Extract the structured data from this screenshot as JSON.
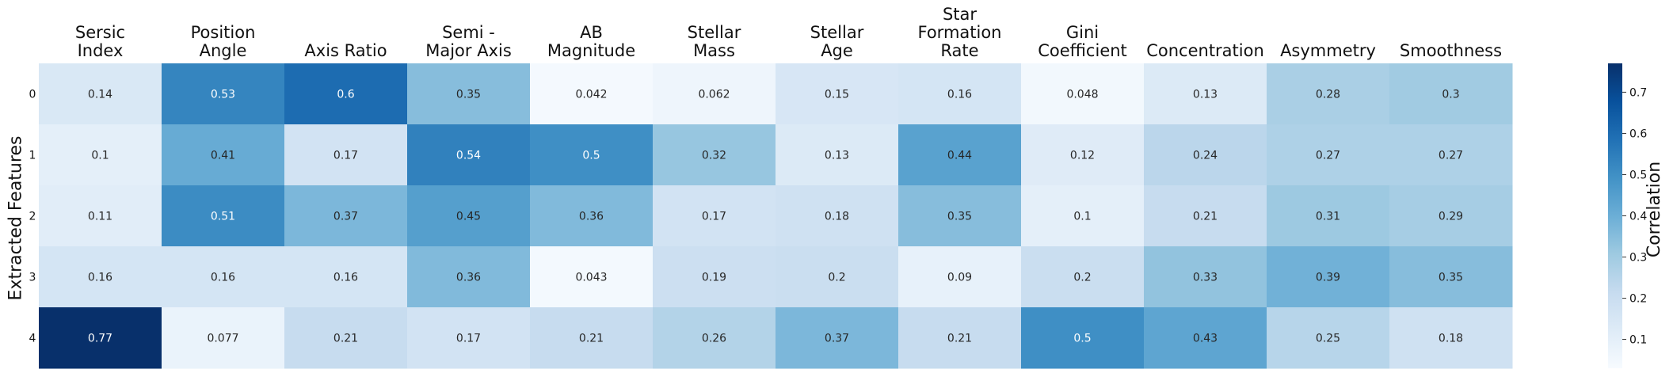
{
  "chart_data": {
    "type": "heatmap",
    "columns": [
      [
        "Sersic",
        "Index"
      ],
      [
        "Position",
        "Angle"
      ],
      [
        "Axis Ratio"
      ],
      [
        "Semi -",
        "Major Axis"
      ],
      [
        "AB",
        "Magnitude"
      ],
      [
        "Stellar",
        "Mass"
      ],
      [
        "Stellar",
        "Age"
      ],
      [
        "Star",
        "Formation",
        "Rate"
      ],
      [
        "Gini",
        "Coefficient"
      ],
      [
        "Concentration"
      ],
      [
        "Asymmetry"
      ],
      [
        "Smoothness"
      ]
    ],
    "rows": [
      "0",
      "1",
      "2",
      "3",
      "4"
    ],
    "ylabel": "Extracted Features",
    "values": [
      [
        "0.14",
        "0.53",
        "0.6",
        "0.35",
        "0.042",
        "0.062",
        "0.15",
        "0.16",
        "0.048",
        "0.13",
        "0.28",
        "0.3"
      ],
      [
        "0.1",
        "0.41",
        "0.17",
        "0.54",
        "0.5",
        "0.32",
        "0.13",
        "0.44",
        "0.12",
        "0.24",
        "0.27",
        "0.27"
      ],
      [
        "0.11",
        "0.51",
        "0.37",
        "0.45",
        "0.36",
        "0.17",
        "0.18",
        "0.35",
        "0.1",
        "0.21",
        "0.31",
        "0.29"
      ],
      [
        "0.16",
        "0.16",
        "0.16",
        "0.36",
        "0.043",
        "0.19",
        "0.2",
        "0.09",
        "0.2",
        "0.33",
        "0.39",
        "0.35"
      ],
      [
        "0.77",
        "0.077",
        "0.21",
        "0.17",
        "0.21",
        "0.26",
        "0.37",
        "0.21",
        "0.5",
        "0.43",
        "0.25",
        "0.18"
      ]
    ],
    "colorbar": {
      "label": "Correlation",
      "range": [
        0.03,
        0.77
      ],
      "ticks": [
        "0.1",
        "0.2",
        "0.3",
        "0.4",
        "0.5",
        "0.6",
        "0.7"
      ]
    },
    "colormap": [
      "#f7fbff",
      "#deebf7",
      "#c6dbef",
      "#9ecae1",
      "#6baed6",
      "#4292c6",
      "#2171b5",
      "#08519c",
      "#08306b"
    ]
  }
}
